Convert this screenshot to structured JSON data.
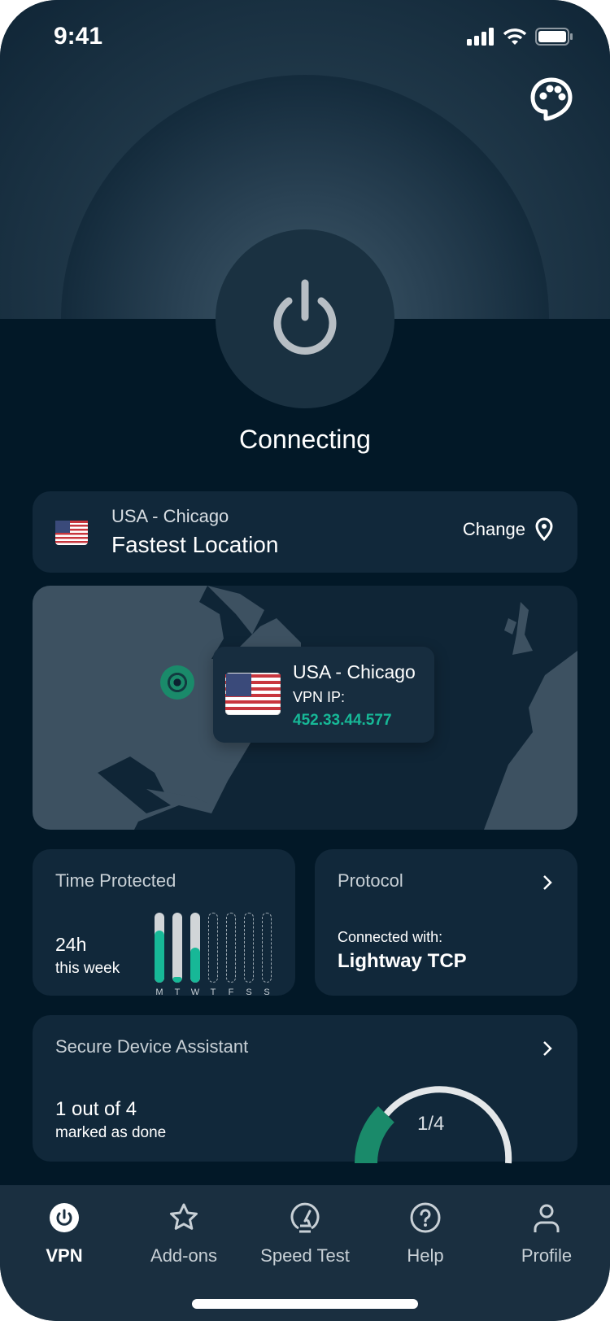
{
  "status_bar": {
    "time": "9:41"
  },
  "hero": {
    "status": "Connecting"
  },
  "location": {
    "city": "USA - Chicago",
    "label": "Fastest Location",
    "change_label": "Change"
  },
  "map": {
    "city": "USA - Chicago",
    "ip_label": "VPN IP:",
    "ip": "452.33.44.577"
  },
  "time_protected": {
    "title": "Time Protected",
    "value": "24h",
    "period": "this week",
    "days": [
      {
        "label": "M",
        "fill": 0.75
      },
      {
        "label": "T",
        "fill": 0.05
      },
      {
        "label": "W",
        "fill": 0.5
      },
      {
        "label": "T",
        "fill": null
      },
      {
        "label": "F",
        "fill": null
      },
      {
        "label": "S",
        "fill": null
      },
      {
        "label": "S",
        "fill": null
      }
    ]
  },
  "protocol": {
    "title": "Protocol",
    "sub": "Connected with:",
    "value": "Lightway TCP"
  },
  "assistant": {
    "title": "Secure Device Assistant",
    "value": "1 out of 4",
    "sub": "marked as done",
    "gauge_label": "1/4",
    "progress": 0.25
  },
  "colors": {
    "accent": "#17b897",
    "background": "#021827",
    "card": "#11283a"
  },
  "nav": [
    {
      "label": "VPN",
      "icon": "power-icon",
      "active": true
    },
    {
      "label": "Add-ons",
      "icon": "star-icon"
    },
    {
      "label": "Speed Test",
      "icon": "speedometer-icon"
    },
    {
      "label": "Help",
      "icon": "help-icon"
    },
    {
      "label": "Profile",
      "icon": "user-icon"
    }
  ]
}
